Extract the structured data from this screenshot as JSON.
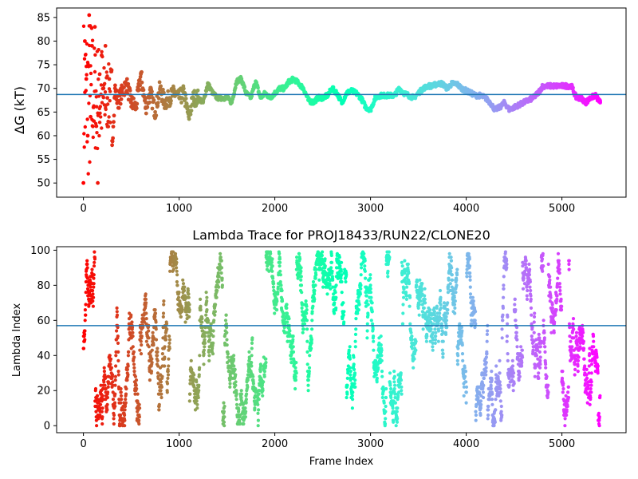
{
  "colors": {
    "reference_line": "#1f77b4",
    "axis": "#000000",
    "colormap": "rainbow"
  },
  "chart_data": [
    {
      "type": "scatter",
      "title": "",
      "xlabel": "",
      "ylabel": "ΔG (kT)",
      "xlim": [
        -280,
        5670
      ],
      "ylim": [
        47,
        87
      ],
      "xticks": [
        0,
        1000,
        2000,
        3000,
        4000,
        5000
      ],
      "yticks": [
        50,
        55,
        60,
        65,
        70,
        75,
        80,
        85
      ],
      "grid": false,
      "reference_line_y": 68.7,
      "color_encoding": "point order, red at frame 0 to violet at frame 5400 (rainbow)",
      "series": [
        {
          "x": [
            0,
            15,
            30,
            45,
            60,
            75,
            90,
            105,
            120,
            135,
            150,
            170,
            190,
            210,
            230,
            250,
            270,
            300,
            330,
            360,
            400,
            450,
            500,
            550,
            600,
            650,
            700,
            750,
            800,
            850,
            900,
            950,
            1000,
            1050,
            1100,
            1150,
            1200,
            1250,
            1300,
            1350,
            1400,
            1450,
            1500,
            1550,
            1600,
            1650,
            1700,
            1750,
            1800,
            1850,
            1900,
            1950,
            2000,
            2050,
            2100,
            2150,
            2200,
            2250,
            2300,
            2350,
            2400,
            2450,
            2500,
            2550,
            2600,
            2650,
            2700,
            2750,
            2800,
            2850,
            2900,
            2950,
            3000,
            3050,
            3100,
            3150,
            3200,
            3250,
            3300,
            3350,
            3400,
            3450,
            3500,
            3550,
            3600,
            3650,
            3700,
            3750,
            3800,
            3850,
            3900,
            3950,
            4000,
            4050,
            4100,
            4150,
            4200,
            4250,
            4300,
            4350,
            4400,
            4450,
            4500,
            4550,
            4600,
            4650,
            4700,
            4750,
            4800,
            4850,
            4900,
            4950,
            5000,
            5050,
            5100,
            5150,
            5200,
            5250,
            5300,
            5350,
            5400
          ],
          "y": [
            50,
            80,
            72,
            60,
            85.5,
            64,
            79,
            66,
            83,
            62,
            50,
            73,
            77,
            70,
            79,
            68,
            72,
            58,
            70,
            67,
            69,
            71,
            67,
            66,
            73,
            66,
            69,
            65,
            70,
            67,
            68,
            69,
            68,
            69,
            64,
            68,
            68,
            67,
            71,
            69,
            68,
            68,
            68,
            67,
            71.5,
            72,
            69,
            68,
            71.5,
            68,
            69,
            68,
            69,
            70,
            70,
            71.5,
            72,
            71,
            70,
            67.5,
            67,
            68,
            68,
            68.5,
            70,
            69,
            67,
            69,
            69.5,
            69,
            68,
            66,
            65.5,
            68,
            68.5,
            68.5,
            68.5,
            68.5,
            70,
            69,
            68.5,
            68,
            69,
            70,
            70.5,
            70.5,
            71,
            71,
            70,
            71,
            71,
            70,
            69.5,
            69,
            68.5,
            68.5,
            68,
            67,
            65.5,
            66,
            67,
            65.5,
            66,
            66.5,
            67,
            67.5,
            68,
            69,
            70.5,
            70.5,
            70.5,
            70.5,
            70.5,
            70.5,
            70.5,
            68,
            68,
            67,
            68,
            68.5,
            67
          ]
        }
      ]
    },
    {
      "type": "scatter",
      "title": "Lambda Trace for PROJ18433/RUN22/CLONE20",
      "xlabel": "Frame Index",
      "ylabel": "Lambda Index",
      "xlim": [
        -280,
        5670
      ],
      "ylim": [
        -4,
        102
      ],
      "xticks": [
        0,
        1000,
        2000,
        3000,
        4000,
        5000
      ],
      "yticks": [
        0,
        20,
        40,
        60,
        80,
        100
      ],
      "grid": false,
      "reference_line_y": 57,
      "frame_range": [
        0,
        5400
      ],
      "lambda_range": [
        0,
        99
      ],
      "color_encoding": "point order, red at frame 0 to violet at frame 5400 (rainbow)",
      "series": [
        {
          "description": "dense random walk of lambda index (0-99) sampled roughly every frame across frames 0-5400"
        }
      ]
    }
  ]
}
